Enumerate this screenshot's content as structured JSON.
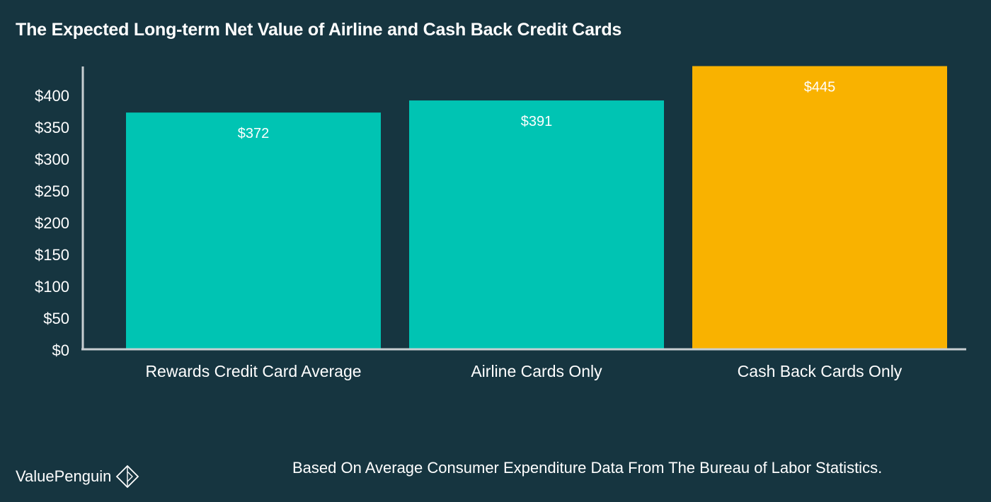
{
  "title": "The Expected Long-term Net Value of Airline and Cash Back Credit Cards",
  "footnote": "Based On Average Consumer Expenditure Data From The Bureau of Labor Statistics.",
  "brand": {
    "name": "ValuePenguin",
    "icon": "penguin-diamond-icon"
  },
  "colors": {
    "background": "#163540",
    "teal": "#00c4b3",
    "gold": "#f9b200",
    "axis": "#c8cfd2",
    "text": "#ffffff"
  },
  "chart_data": {
    "type": "bar",
    "title": "The Expected Long-term Net Value of Airline and Cash Back Credit Cards",
    "xlabel": "",
    "ylabel": "",
    "categories": [
      "Rewards Credit Card Average",
      "Airline Cards Only",
      "Cash Back Cards Only"
    ],
    "values": [
      372,
      391,
      445
    ],
    "data_labels": [
      "$372",
      "$391",
      "$445"
    ],
    "bar_colors": [
      "#00c4b3",
      "#00c4b3",
      "#f9b200"
    ],
    "ylim": [
      0,
      445
    ],
    "yticks": [
      0,
      50,
      100,
      150,
      200,
      250,
      300,
      350,
      400
    ],
    "ytick_labels": [
      "$0",
      "$50",
      "$100",
      "$150",
      "$200",
      "$250",
      "$300",
      "$350",
      "$400"
    ],
    "grid": false,
    "legend": "none"
  }
}
